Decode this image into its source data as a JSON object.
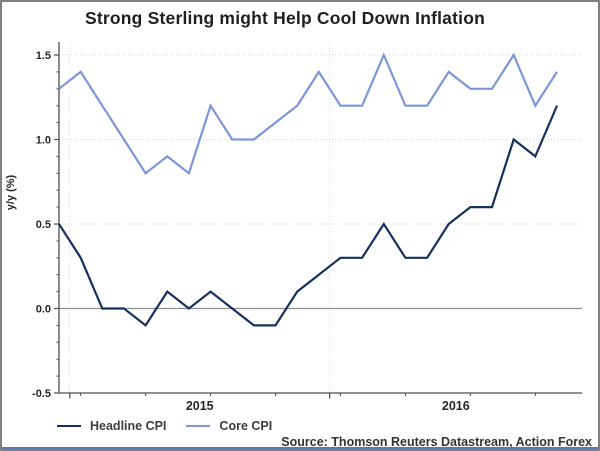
{
  "header": {
    "title": "Strong Sterling might Help Cool Down Inflation"
  },
  "footer": {
    "source": "Source: Thomson Reuters Datastream, Action Forex"
  },
  "colors": {
    "headline_cpi": "#16305f",
    "core_cpi": "#7d96da",
    "grid_dotted": "#d4d4d4",
    "grid_vertical": "#dcdcdc",
    "zero_line": "#8f8f8f",
    "axis": "#4d4d4d",
    "tick_text": "#262626",
    "accent_bar": "#537aae"
  },
  "chart_data": {
    "type": "line",
    "title": "Strong Sterling might Help Cool Down Inflation",
    "xlabel": "",
    "ylabel": "y/y (%)",
    "ylim": [
      -0.5,
      1.5
    ],
    "y_ticks": [
      1.5,
      1.0,
      0.5,
      0.0,
      -0.5
    ],
    "y_tick_labels": [
      "1.5",
      "1.0",
      "0.5",
      "0.0",
      "-0.5"
    ],
    "x_year_labels": [
      "2015",
      "2016"
    ],
    "grid": "horizontal dotted at 0.5 steps, solid line at 0.0, dotted vertical lines at year boundaries",
    "legend_position": "bottom-left",
    "categories": [
      "2014-12",
      "2015-01",
      "2015-02",
      "2015-03",
      "2015-04",
      "2015-05",
      "2015-06",
      "2015-07",
      "2015-08",
      "2015-09",
      "2015-10",
      "2015-11",
      "2015-12",
      "2016-01",
      "2016-02",
      "2016-03",
      "2016-04",
      "2016-05",
      "2016-06",
      "2016-07",
      "2016-08",
      "2016-09",
      "2016-10",
      "2016-11"
    ],
    "series": [
      {
        "name": "Headline CPI",
        "values": [
          0.5,
          0.3,
          0.0,
          0.0,
          -0.1,
          0.1,
          0.0,
          0.1,
          0.0,
          -0.1,
          -0.1,
          0.1,
          0.2,
          0.3,
          0.3,
          0.5,
          0.3,
          0.3,
          0.5,
          0.6,
          0.6,
          1.0,
          0.9,
          1.2
        ]
      },
      {
        "name": "Core CPI",
        "values": [
          1.3,
          1.4,
          1.2,
          1.0,
          0.8,
          0.9,
          0.8,
          1.2,
          1.0,
          1.0,
          1.1,
          1.2,
          1.4,
          1.2,
          1.2,
          1.5,
          1.2,
          1.2,
          1.4,
          1.3,
          1.3,
          1.5,
          1.2,
          1.4
        ]
      }
    ]
  }
}
